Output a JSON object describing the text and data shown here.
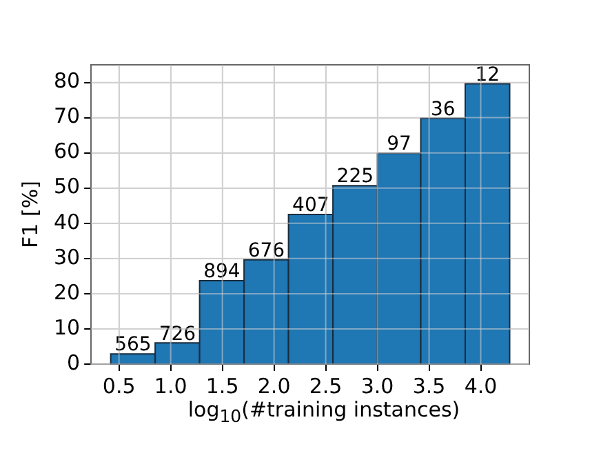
{
  "chart_data": {
    "type": "histogram",
    "xlabel": "log$_{10}$(#training instances)",
    "ylabel": "F1 [%]",
    "bins": [
      0.42,
      0.85,
      1.28,
      1.71,
      2.14,
      2.57,
      3.0,
      3.42,
      3.85,
      4.28
    ],
    "values": [
      2.9,
      6.0,
      23.7,
      29.6,
      42.5,
      50.7,
      59.9,
      69.8,
      79.6
    ],
    "annotations": [
      {
        "text": "565",
        "x": 0.635,
        "y": 2.9
      },
      {
        "text": "726",
        "x": 1.065,
        "y": 6.0
      },
      {
        "text": "894",
        "x": 1.495,
        "y": 23.7
      },
      {
        "text": "676",
        "x": 1.925,
        "y": 29.6
      },
      {
        "text": "407",
        "x": 2.355,
        "y": 42.5
      },
      {
        "text": "225",
        "x": 2.785,
        "y": 50.7
      },
      {
        "text": "97",
        "x": 3.21,
        "y": 59.9
      },
      {
        "text": "36",
        "x": 3.635,
        "y": 69.8
      },
      {
        "text": "12",
        "x": 4.065,
        "y": 79.6
      }
    ],
    "color": "#1f77b4",
    "xlim": [
      0.23,
      4.47
    ],
    "xticks": [
      0.5,
      {
        "value": 1,
        "label": "1.0"
      },
      1.5,
      {
        "value": 2,
        "label": "2.0"
      },
      2.5,
      {
        "value": 3,
        "label": "3.0"
      },
      3.5,
      {
        "value": 4,
        "label": "4.0"
      }
    ],
    "ylim": [
      0,
      85
    ],
    "yticks": [
      0,
      10,
      20,
      30,
      40,
      50,
      60,
      70,
      80
    ],
    "grid": true
  }
}
